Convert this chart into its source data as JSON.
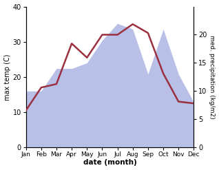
{
  "months": [
    "Jan",
    "Feb",
    "Mar",
    "Apr",
    "May",
    "Jun",
    "Jul",
    "Aug",
    "Sep",
    "Oct",
    "Nov",
    "Dec"
  ],
  "month_positions": [
    0,
    1,
    2,
    3,
    4,
    5,
    6,
    7,
    8,
    9,
    10,
    11
  ],
  "temp": [
    10.5,
    17.0,
    18.0,
    29.5,
    25.5,
    32.0,
    32.0,
    35.0,
    32.5,
    21.0,
    13.0,
    12.5
  ],
  "precip": [
    10.0,
    10.0,
    14.0,
    14.0,
    15.0,
    19.0,
    22.0,
    21.0,
    13.0,
    21.0,
    13.0,
    8.0
  ],
  "temp_color": "#9b3040",
  "precip_fill_color": "#b8c0e8",
  "temp_lw": 1.8,
  "xlabel": "date (month)",
  "ylabel_left": "max temp (C)",
  "ylabel_right": "med. precipitation (kg/m2)",
  "ylim_left": [
    0,
    40
  ],
  "ylim_right": [
    0,
    25
  ],
  "yticks_left": [
    0,
    10,
    20,
    30,
    40
  ],
  "yticks_right": [
    0,
    5,
    10,
    15,
    20
  ],
  "background_color": "#ffffff"
}
